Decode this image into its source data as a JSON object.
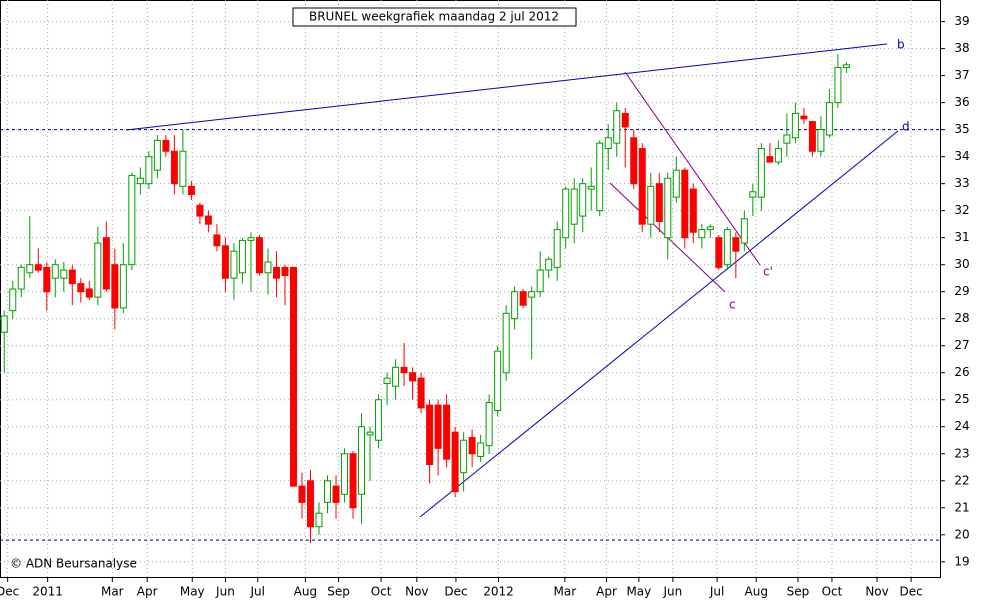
{
  "chart_data": {
    "type": "candlestick",
    "title": "BRUNEL weekgrafiek maandag 2 jul 2012",
    "copyright": "© ADN Beursanalyse",
    "open": [
      27.5,
      28.3,
      29.1,
      29.7,
      30.0,
      29.9,
      29.5,
      29.5,
      29.8,
      29.3,
      29.1,
      28.8,
      31.0,
      30.0,
      28.4,
      30.0,
      33.0,
      33.0,
      33.5,
      34.6,
      34.2,
      32.9,
      32.9,
      32.2,
      31.8,
      31.1,
      30.7,
      29.5,
      29.7,
      30.9,
      31.0,
      29.7,
      29.9,
      29.9,
      29.9,
      21.8,
      22.0,
      20.3,
      21.2,
      21.8,
      21.5,
      23.0,
      21.5,
      23.7,
      23.5,
      25.6,
      25.5,
      26.2,
      26.0,
      25.8,
      24.8,
      24.8,
      24.8,
      23.8,
      22.3,
      23.6,
      22.9,
      23.3,
      24.6,
      26.0,
      28.0,
      29.0,
      28.8,
      29.0,
      29.8,
      29.9,
      31.0,
      31.5,
      31.8,
      32.8,
      32.0,
      34.3,
      34.5,
      35.6,
      34.7,
      34.3,
      31.5,
      33.0,
      31.0,
      32.5,
      33.5,
      32.8,
      31.0,
      31.3,
      31.0,
      30.0,
      31.0,
      30.8,
      32.5,
      32.5,
      34.0,
      33.8,
      34.5,
      34.7,
      35.5,
      35.3,
      34.2,
      34.8,
      36.0,
      37.3
    ],
    "high": [
      28.3,
      29.4,
      30.0,
      31.8,
      30.6,
      30.1,
      30.2,
      30.1,
      30.0,
      29.5,
      29.4,
      31.4,
      31.6,
      30.6,
      30.8,
      33.4,
      33.6,
      34.2,
      34.8,
      34.8,
      34.8,
      35.0,
      33.1,
      32.3,
      32.0,
      31.5,
      31.0,
      30.8,
      31.0,
      31.2,
      31.1,
      30.6,
      30.5,
      30.0,
      29.9,
      22.3,
      22.4,
      21.2,
      22.2,
      22.2,
      23.2,
      23.1,
      24.5,
      24.0,
      25.2,
      26.0,
      26.5,
      27.1,
      26.2,
      26.0,
      25.0,
      25.0,
      25.2,
      24.0,
      23.8,
      23.9,
      23.7,
      25.2,
      27.0,
      28.5,
      29.2,
      29.1,
      29.2,
      30.5,
      30.3,
      31.6,
      32.9,
      33.2,
      33.2,
      33.6,
      34.6,
      35.2,
      36.0,
      35.8,
      35.0,
      34.5,
      33.4,
      33.4,
      33.4,
      34.0,
      33.6,
      33.0,
      31.5,
      31.5,
      31.1,
      31.4,
      31.2,
      32.0,
      33.0,
      34.5,
      34.5,
      34.6,
      35.6,
      36.0,
      35.8,
      35.3,
      35.5,
      36.5,
      37.8,
      37.5
    ],
    "low": [
      26.0,
      28.0,
      28.8,
      29.5,
      29.7,
      28.3,
      28.8,
      29.0,
      28.5,
      28.6,
      28.7,
      28.5,
      29.0,
      27.6,
      28.2,
      29.8,
      32.6,
      32.8,
      33.2,
      34.0,
      32.6,
      32.6,
      32.4,
      31.5,
      31.2,
      30.5,
      29.0,
      28.7,
      29.3,
      29.0,
      29.6,
      28.9,
      28.8,
      28.5,
      21.8,
      20.6,
      19.7,
      20.0,
      20.8,
      20.6,
      21.2,
      20.6,
      20.4,
      22.0,
      23.2,
      24.8,
      25.0,
      25.5,
      25.0,
      24.5,
      21.9,
      22.2,
      22.5,
      21.4,
      21.6,
      22.5,
      22.7,
      23.0,
      24.4,
      25.7,
      27.6,
      28.4,
      26.5,
      28.8,
      29.5,
      29.4,
      30.6,
      30.8,
      31.2,
      32.0,
      31.8,
      33.5,
      34.0,
      33.6,
      32.8,
      31.2,
      31.0,
      31.2,
      30.2,
      32.3,
      30.6,
      30.8,
      30.6,
      31.0,
      29.8,
      29.8,
      29.5,
      30.5,
      31.8,
      32.0,
      33.8,
      33.7,
      34.0,
      34.5,
      35.2,
      34.0,
      34.0,
      34.7,
      35.8,
      37.1
    ],
    "close": [
      28.1,
      29.1,
      29.9,
      30.0,
      29.8,
      29.0,
      30.0,
      29.8,
      29.3,
      29.0,
      28.8,
      30.8,
      29.1,
      28.4,
      30.0,
      33.3,
      33.2,
      34.0,
      34.6,
      34.2,
      33.0,
      34.2,
      32.6,
      31.8,
      31.5,
      30.7,
      29.5,
      30.5,
      30.9,
      31.0,
      29.7,
      30.1,
      29.5,
      29.6,
      21.8,
      21.2,
      20.3,
      20.8,
      22.0,
      21.2,
      23.0,
      21.0,
      24.0,
      23.8,
      25.0,
      25.8,
      26.2,
      26.0,
      25.7,
      24.7,
      22.6,
      23.2,
      22.8,
      21.6,
      23.5,
      23.0,
      23.4,
      24.9,
      26.8,
      28.2,
      29.0,
      28.5,
      29.0,
      29.8,
      30.2,
      31.3,
      32.8,
      32.8,
      33.0,
      32.9,
      34.5,
      34.7,
      35.7,
      35.1,
      33.0,
      31.5,
      32.9,
      31.6,
      33.2,
      33.5,
      31.0,
      31.2,
      31.3,
      31.4,
      29.9,
      31.3,
      30.5,
      31.7,
      32.7,
      34.3,
      33.8,
      34.3,
      34.8,
      35.6,
      35.4,
      34.2,
      35.0,
      36.0,
      37.3,
      37.4
    ],
    "up_color": "#00a000",
    "down_color": "#ff0000",
    "xlim": [
      -0.5,
      110
    ],
    "xticks": [
      {
        "value": 0.4,
        "label": "Dec"
      },
      {
        "value": 5.1,
        "label": "2011"
      },
      {
        "value": 12.7,
        "label": "Mar"
      },
      {
        "value": 16.8,
        "label": "Apr"
      },
      {
        "value": 22.1,
        "label": "May"
      },
      {
        "value": 26,
        "label": "Jun"
      },
      {
        "value": 29.8,
        "label": "Jul"
      },
      {
        "value": 35.4,
        "label": "Aug"
      },
      {
        "value": 39.3,
        "label": "Sep"
      },
      {
        "value": 44.3,
        "label": "Oct"
      },
      {
        "value": 48.5,
        "label": "Nov"
      },
      {
        "value": 53.1,
        "label": "Dec"
      },
      {
        "value": 58.1,
        "label": "2012"
      },
      {
        "value": 65.9,
        "label": "Mar"
      },
      {
        "value": 70.8,
        "label": "Apr"
      },
      {
        "value": 74.6,
        "label": "May"
      },
      {
        "value": 78.6,
        "label": "Jun"
      },
      {
        "value": 83.8,
        "label": "Jul"
      },
      {
        "value": 88.4,
        "label": "Aug"
      },
      {
        "value": 93.3,
        "label": "Sep"
      },
      {
        "value": 97.3,
        "label": "Oct"
      },
      {
        "value": 102.6,
        "label": "Nov"
      },
      {
        "value": 106.6,
        "label": "Dec"
      }
    ],
    "ylim": [
      18.4,
      39.8
    ],
    "yticks": [
      19,
      20,
      21,
      22,
      23,
      24,
      25,
      26,
      27,
      28,
      29,
      30,
      31,
      32,
      33,
      34,
      35,
      36,
      37,
      38,
      39
    ],
    "grid": true,
    "reference_lines": [
      35,
      19.8
    ],
    "annotations": [
      "b",
      "d",
      "c",
      "c'"
    ]
  }
}
